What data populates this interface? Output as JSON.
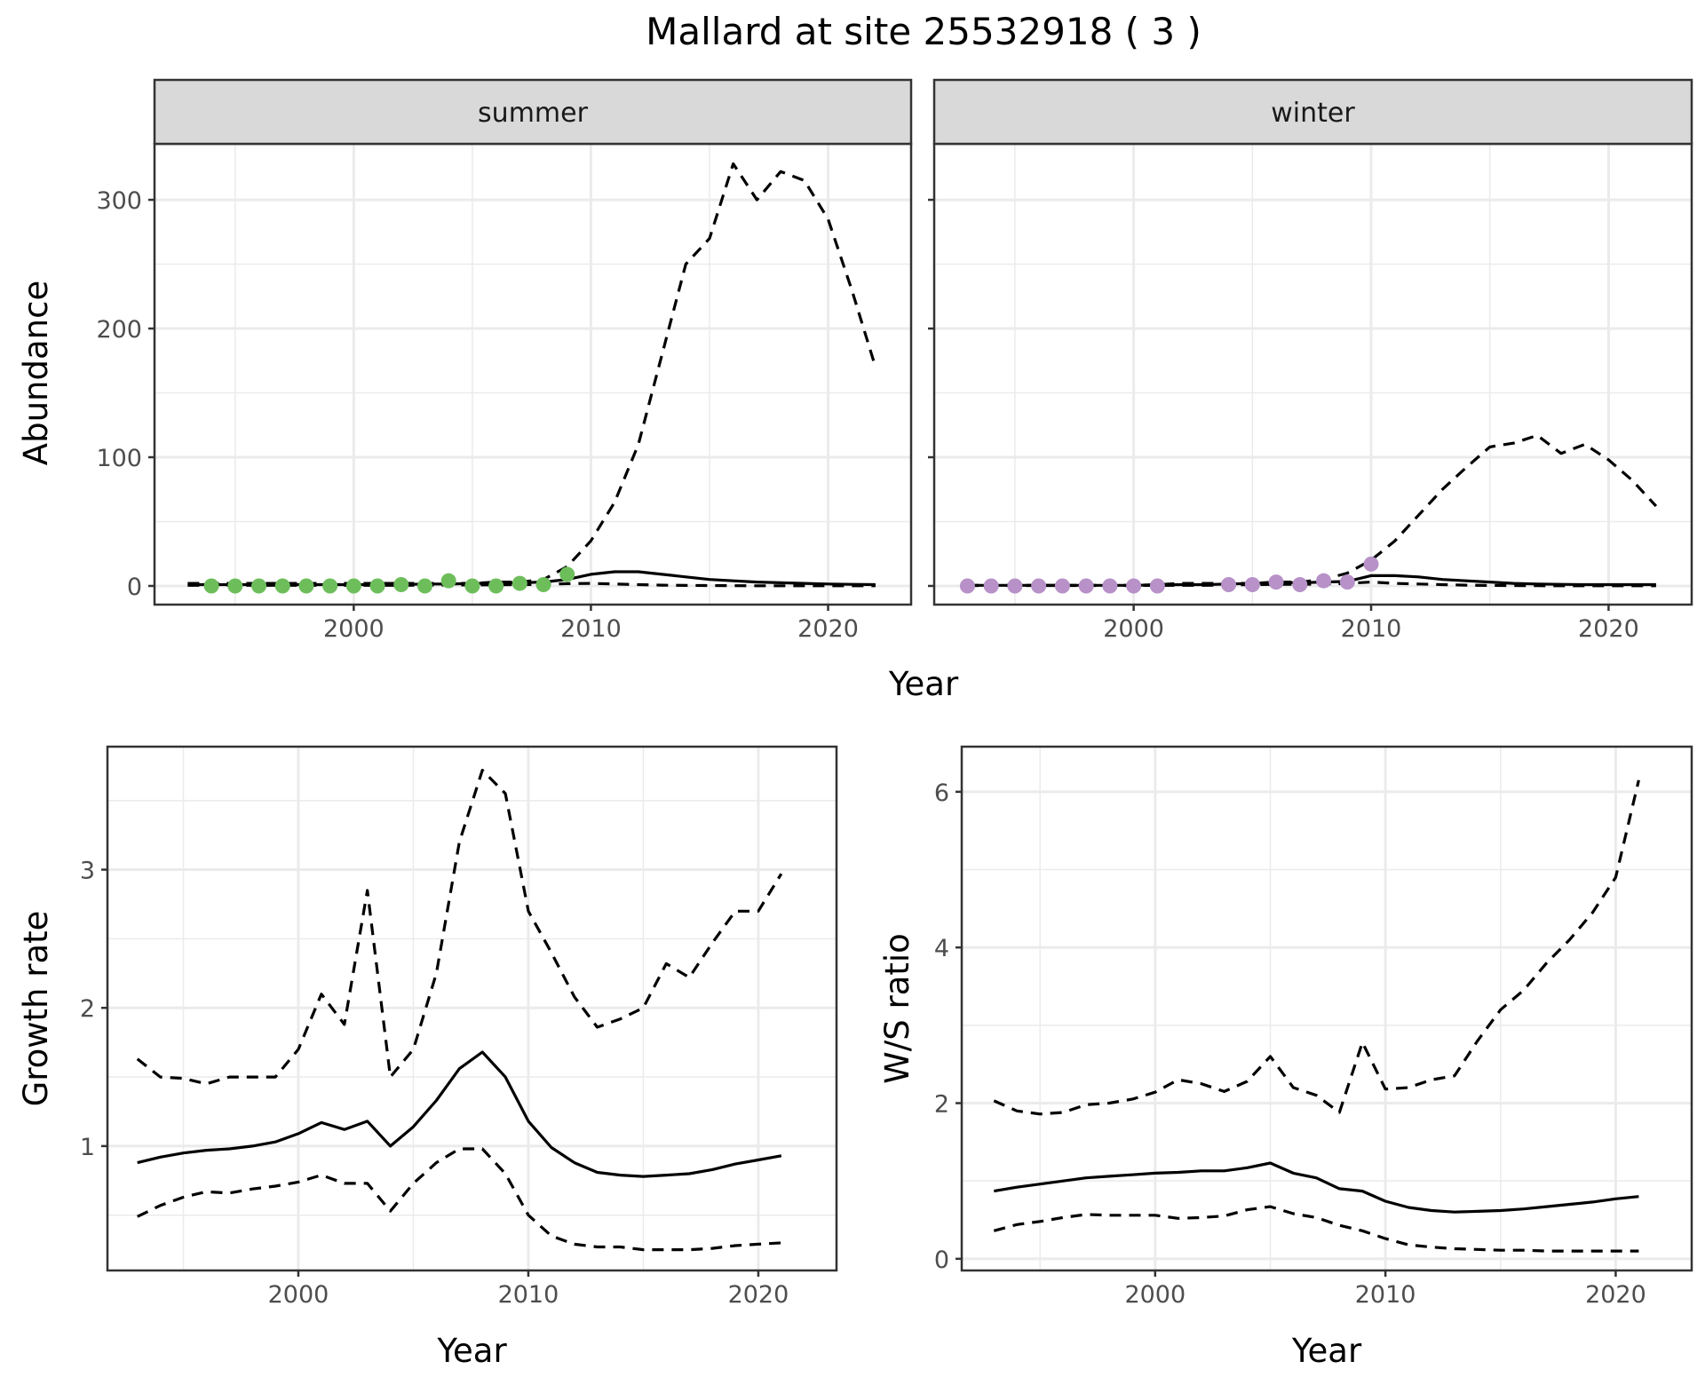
{
  "title": "Mallard at site 25532918 ( 3 )",
  "colors": {
    "summer_points": "#6dbe5b",
    "winter_points": "#b791c8",
    "strip_fill": "#d9d9d9",
    "grid": "#ebebeb"
  },
  "chart_data": [
    {
      "type": "line",
      "facet": "summer",
      "xlabel": "Year",
      "ylabel": "Abundance",
      "xlim": [
        1991.6,
        2023.5
      ],
      "ylim": [
        -14.5,
        343.5
      ],
      "xticks": [
        2000,
        2010,
        2020
      ],
      "yticks": [
        0,
        100,
        200,
        300
      ],
      "grid": true,
      "x": [
        1993,
        1994,
        1995,
        1996,
        1997,
        1998,
        1999,
        2000,
        2001,
        2002,
        2003,
        2004,
        2005,
        2006,
        2007,
        2008,
        2009,
        2010,
        2011,
        2012,
        2013,
        2014,
        2015,
        2016,
        2017,
        2018,
        2019,
        2020,
        2021,
        2022
      ],
      "series": [
        {
          "style": "dashed",
          "values": [
            2,
            2,
            2,
            2,
            2,
            2,
            2,
            2,
            2,
            2,
            2,
            2,
            2,
            3,
            3,
            5,
            15,
            35,
            65,
            110,
            180,
            250,
            270,
            328,
            300,
            322,
            315,
            285,
            230,
            170
          ]
        },
        {
          "style": "solid",
          "values": [
            1,
            1,
            1,
            1,
            1,
            1,
            1,
            1,
            1,
            1,
            1.5,
            1.5,
            2,
            2,
            2.5,
            3,
            5,
            9,
            11,
            11,
            9,
            7,
            5,
            4,
            3,
            2.5,
            2,
            1.5,
            1.2,
            1
          ]
        },
        {
          "style": "dashed",
          "values": [
            0.5,
            0.5,
            0.5,
            0.5,
            0.5,
            0.5,
            0.5,
            0.5,
            0.5,
            0.5,
            0.7,
            0.7,
            0.8,
            0.9,
            1,
            1.2,
            1.8,
            2,
            1.5,
            1,
            0.6,
            0.4,
            0.3,
            0.2,
            0.1,
            0.1,
            0.1,
            0.1,
            0.1,
            0.1
          ]
        }
      ],
      "points": {
        "x": [
          1994,
          1995,
          1996,
          1997,
          1998,
          1999,
          2000,
          2001,
          2002,
          2003,
          2004,
          2005,
          2006,
          2007,
          2008,
          2009
        ],
        "y": [
          0,
          0,
          0,
          0,
          0,
          0,
          0,
          0,
          1,
          0,
          4,
          0,
          0,
          2,
          1,
          9
        ]
      }
    },
    {
      "type": "line",
      "facet": "winter",
      "xlabel": "Year",
      "ylabel": "Abundance",
      "xlim": [
        1991.6,
        2023.5
      ],
      "ylim": [
        -14.5,
        343.5
      ],
      "xticks": [
        2000,
        2010,
        2020
      ],
      "yticks": [
        0,
        100,
        200,
        300
      ],
      "grid": true,
      "x": [
        1993,
        1994,
        1995,
        1996,
        1997,
        1998,
        1999,
        2000,
        2001,
        2002,
        2003,
        2004,
        2005,
        2006,
        2007,
        2008,
        2009,
        2010,
        2011,
        2012,
        2013,
        2014,
        2015,
        2016,
        2017,
        2018,
        2019,
        2020,
        2021,
        2022
      ],
      "series": [
        {
          "style": "dashed",
          "values": [
            0.5,
            0.5,
            0.5,
            0.5,
            0.5,
            0.5,
            0.5,
            0.5,
            1,
            2,
            2,
            2,
            2,
            3,
            3,
            5,
            10,
            20,
            35,
            55,
            75,
            92,
            108,
            111,
            117,
            103,
            110,
            98,
            82,
            62
          ]
        },
        {
          "style": "solid",
          "values": [
            0.5,
            0.5,
            0.5,
            0.5,
            0.5,
            0.5,
            0.5,
            0.5,
            0.8,
            1,
            1,
            1.5,
            2,
            2.5,
            2.5,
            3,
            3.5,
            8,
            8,
            7,
            5,
            4,
            3,
            2,
            1.5,
            1.2,
            1,
            1,
            1,
            1
          ]
        },
        {
          "style": "dashed",
          "values": [
            0.3,
            0.3,
            0.3,
            0.3,
            0.3,
            0.3,
            0.3,
            0.3,
            0.4,
            0.5,
            0.5,
            0.8,
            1,
            1.2,
            1.2,
            1.5,
            2,
            3,
            2,
            1.5,
            1,
            0.6,
            0.4,
            0.3,
            0.2,
            0.1,
            0.1,
            0.1,
            0.1,
            0.1
          ]
        }
      ],
      "points": {
        "x": [
          1993,
          1994,
          1995,
          1996,
          1997,
          1998,
          1999,
          2000,
          2001,
          2004,
          2005,
          2006,
          2007,
          2008,
          2009,
          2010
        ],
        "y": [
          0,
          0,
          0,
          0,
          0,
          0,
          0,
          0,
          0,
          1,
          1,
          3,
          1,
          4,
          3,
          17
        ]
      }
    },
    {
      "type": "line",
      "xlabel": "Year",
      "ylabel": "Growth rate",
      "xlim": [
        1991.7,
        2023.4
      ],
      "ylim": [
        0.1,
        3.89
      ],
      "xticks": [
        2000,
        2010,
        2020
      ],
      "yticks": [
        1,
        2,
        3
      ],
      "grid": true,
      "x": [
        1993,
        1994,
        1995,
        1996,
        1997,
        1998,
        1999,
        2000,
        2001,
        2002,
        2003,
        2004,
        2005,
        2006,
        2007,
        2008,
        2009,
        2010,
        2011,
        2012,
        2013,
        2014,
        2015,
        2016,
        2017,
        2018,
        2019,
        2020,
        2021
      ],
      "series": [
        {
          "style": "dashed",
          "values": [
            1.63,
            1.5,
            1.49,
            1.45,
            1.5,
            1.5,
            1.5,
            1.7,
            2.1,
            1.88,
            2.85,
            1.5,
            1.7,
            2.25,
            3.2,
            3.72,
            3.55,
            2.7,
            2.4,
            2.08,
            1.86,
            1.92,
            2.0,
            2.32,
            2.22,
            2.47,
            2.7,
            2.7,
            2.97
          ]
        },
        {
          "style": "solid",
          "values": [
            0.88,
            0.92,
            0.95,
            0.97,
            0.98,
            1.0,
            1.03,
            1.09,
            1.17,
            1.12,
            1.18,
            1.0,
            1.14,
            1.33,
            1.56,
            1.68,
            1.5,
            1.18,
            0.99,
            0.88,
            0.81,
            0.79,
            0.78,
            0.79,
            0.8,
            0.83,
            0.87,
            0.9,
            0.93
          ]
        },
        {
          "style": "dashed",
          "values": [
            0.49,
            0.57,
            0.63,
            0.67,
            0.66,
            0.69,
            0.71,
            0.74,
            0.79,
            0.73,
            0.73,
            0.53,
            0.73,
            0.88,
            0.98,
            0.98,
            0.8,
            0.5,
            0.35,
            0.29,
            0.27,
            0.27,
            0.25,
            0.25,
            0.25,
            0.26,
            0.28,
            0.29,
            0.3
          ]
        }
      ]
    },
    {
      "type": "line",
      "xlabel": "Year",
      "ylabel": "W/S ratio",
      "xlim": [
        1991.6,
        2023.3
      ],
      "ylim": [
        -0.15,
        6.58
      ],
      "xticks": [
        2000,
        2010,
        2020
      ],
      "yticks": [
        0,
        2,
        4,
        6
      ],
      "grid": true,
      "x": [
        1993,
        1994,
        1995,
        1996,
        1997,
        1998,
        1999,
        2000,
        2001,
        2002,
        2003,
        2004,
        2005,
        2006,
        2007,
        2008,
        2009,
        2010,
        2011,
        2012,
        2013,
        2014,
        2015,
        2016,
        2017,
        2018,
        2019,
        2020,
        2021
      ],
      "series": [
        {
          "style": "dashed",
          "values": [
            2.03,
            1.9,
            1.86,
            1.88,
            1.98,
            2.0,
            2.05,
            2.14,
            2.3,
            2.25,
            2.15,
            2.28,
            2.6,
            2.2,
            2.1,
            1.88,
            2.78,
            2.18,
            2.2,
            2.3,
            2.35,
            2.8,
            3.2,
            3.45,
            3.8,
            4.1,
            4.45,
            4.9,
            6.15
          ]
        },
        {
          "style": "solid",
          "values": [
            0.87,
            0.92,
            0.96,
            1.0,
            1.04,
            1.06,
            1.08,
            1.1,
            1.11,
            1.13,
            1.13,
            1.17,
            1.23,
            1.1,
            1.04,
            0.9,
            0.87,
            0.74,
            0.66,
            0.62,
            0.6,
            0.61,
            0.62,
            0.64,
            0.67,
            0.7,
            0.73,
            0.77,
            0.8
          ]
        },
        {
          "style": "dashed",
          "values": [
            0.36,
            0.44,
            0.48,
            0.53,
            0.57,
            0.56,
            0.56,
            0.56,
            0.52,
            0.53,
            0.55,
            0.63,
            0.67,
            0.58,
            0.53,
            0.43,
            0.36,
            0.26,
            0.18,
            0.15,
            0.13,
            0.12,
            0.11,
            0.11,
            0.1,
            0.1,
            0.1,
            0.1,
            0.1
          ]
        }
      ]
    }
  ]
}
